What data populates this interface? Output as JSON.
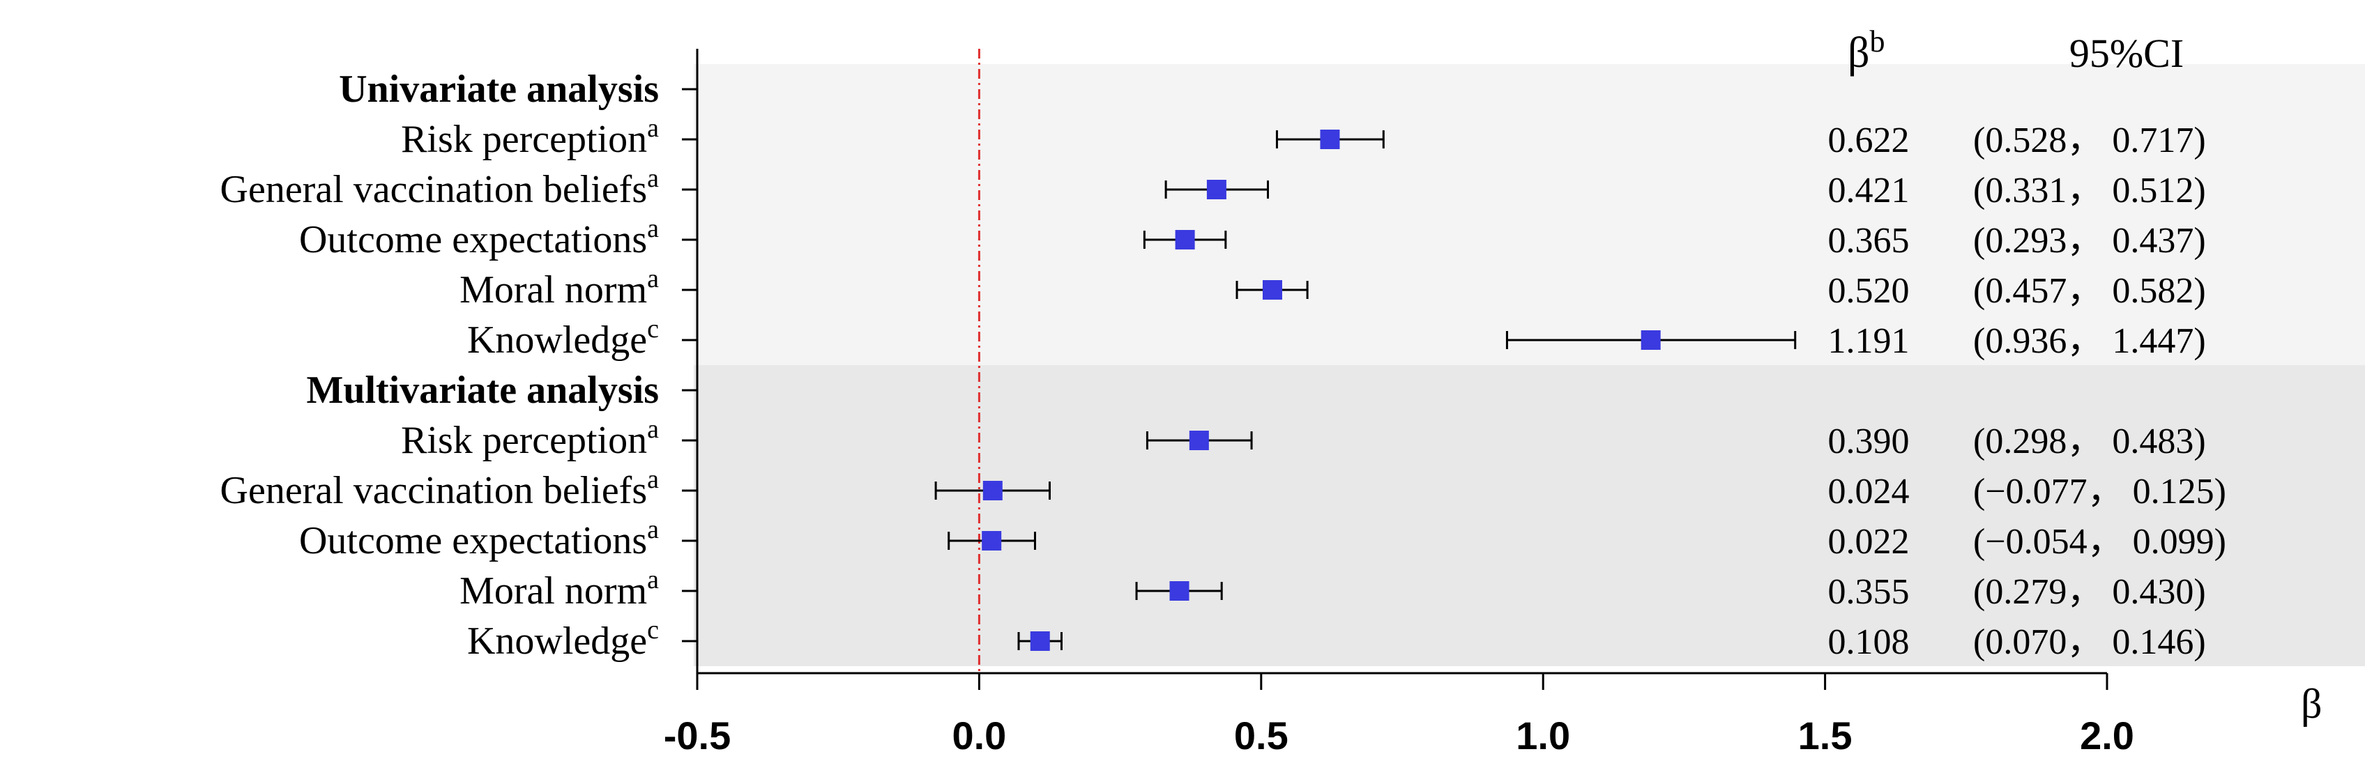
{
  "chart_data": {
    "type": "forest",
    "xlabel": "β",
    "xlim": [
      -0.5,
      2.0
    ],
    "x_ticks": [
      "-0.5",
      "0.0",
      "0.5",
      "1.0",
      "1.5",
      "2.0"
    ],
    "reference_line": 0.0,
    "column_headers": {
      "beta": "β",
      "beta_sup": "b",
      "ci": "95%CI"
    },
    "groups": [
      {
        "name": "Univariate analysis",
        "rows": [
          {
            "label": "Risk perception",
            "sup": "a",
            "beta": 0.622,
            "lo": 0.528,
            "hi": 0.717,
            "beta_text": "0.622",
            "ci_text": "(0.528， 0.717)"
          },
          {
            "label": "General vaccination beliefs",
            "sup": "a",
            "beta": 0.421,
            "lo": 0.331,
            "hi": 0.512,
            "beta_text": "0.421",
            "ci_text": "(0.331， 0.512)"
          },
          {
            "label": "Outcome expectations",
            "sup": "a",
            "beta": 0.365,
            "lo": 0.293,
            "hi": 0.437,
            "beta_text": "0.365",
            "ci_text": "(0.293， 0.437)"
          },
          {
            "label": "Moral norm",
            "sup": "a",
            "beta": 0.52,
            "lo": 0.457,
            "hi": 0.582,
            "beta_text": "0.520",
            "ci_text": "(0.457， 0.582)"
          },
          {
            "label": "Knowledge",
            "sup": "c",
            "beta": 1.191,
            "lo": 0.936,
            "hi": 1.447,
            "beta_text": "1.191",
            "ci_text": "(0.936， 1.447)"
          }
        ]
      },
      {
        "name": "Multivariate analysis",
        "rows": [
          {
            "label": "Risk perception",
            "sup": "a",
            "beta": 0.39,
            "lo": 0.298,
            "hi": 0.483,
            "beta_text": "0.390",
            "ci_text": "(0.298， 0.483)"
          },
          {
            "label": "General vaccination beliefs",
            "sup": "a",
            "beta": 0.024,
            "lo": -0.077,
            "hi": 0.125,
            "beta_text": "0.024",
            "ci_text": "(−0.077， 0.125)"
          },
          {
            "label": "Outcome expectations",
            "sup": "a",
            "beta": 0.022,
            "lo": -0.054,
            "hi": 0.099,
            "beta_text": "0.022",
            "ci_text": "(−0.054， 0.099)"
          },
          {
            "label": "Moral norm",
            "sup": "a",
            "beta": 0.355,
            "lo": 0.279,
            "hi": 0.43,
            "beta_text": "0.355",
            "ci_text": "(0.279， 0.430)"
          },
          {
            "label": "Knowledge",
            "sup": "c",
            "beta": 0.108,
            "lo": 0.07,
            "hi": 0.146,
            "beta_text": "0.108",
            "ci_text": "(0.070， 0.146)"
          }
        ]
      }
    ],
    "colors": {
      "marker": "#3a3ae0",
      "reference_line": "#e03030",
      "band_group1": "#f4f4f4",
      "band_group2": "#e8e8e8"
    }
  }
}
